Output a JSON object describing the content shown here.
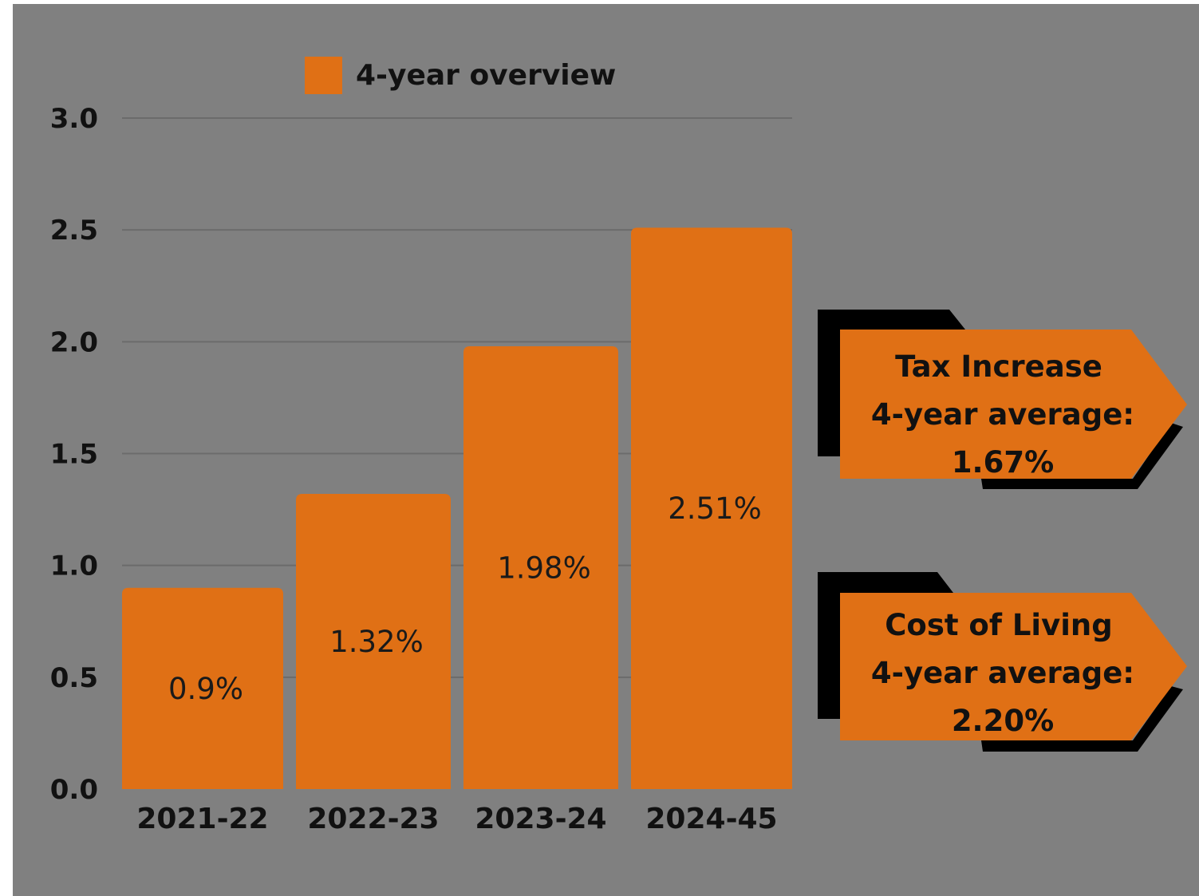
{
  "colors": {
    "background": "#808080",
    "bar": "#e07015",
    "gridline": "#6b6b6b",
    "shadow": "#000000",
    "text": "#111111"
  },
  "chart_data": {
    "type": "bar",
    "categories": [
      "2021-22",
      "2022-23",
      "2023-24",
      "2024-45"
    ],
    "series": [
      {
        "name": "4-year overview",
        "values": [
          0.9,
          1.32,
          1.98,
          2.51
        ]
      }
    ],
    "data_labels": [
      "0.9%",
      "1.32%",
      "1.98%",
      "2.51%"
    ],
    "yticks": [
      "0.0",
      "0.5",
      "1.0",
      "1.5",
      "2.0",
      "2.5",
      "3.0"
    ],
    "ylim": [
      0,
      3.0
    ],
    "grid": true,
    "legend": "top"
  },
  "callouts": [
    {
      "lines": [
        "Tax Increase",
        "4-year average:",
        "1.67%"
      ]
    },
    {
      "lines": [
        "Cost of Living",
        "4-year average:",
        "2.20%"
      ]
    }
  ]
}
